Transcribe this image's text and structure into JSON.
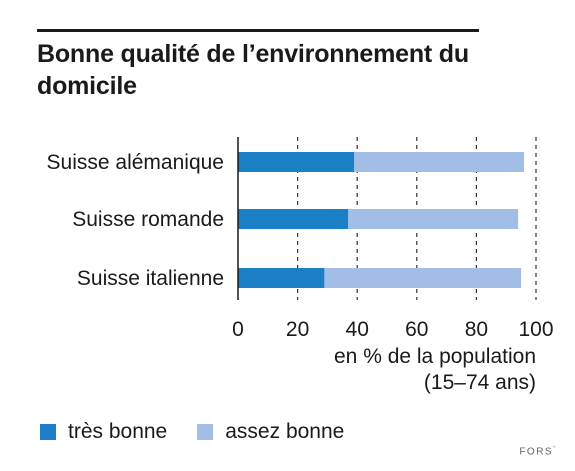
{
  "title": "Bonne qualité de l’environnement du domicile",
  "legend": {
    "items": [
      {
        "label": "très bonne",
        "color": "#1a7fc4"
      },
      {
        "label": "assez bonne",
        "color": "#a2bde6"
      }
    ]
  },
  "footer": {
    "brand": "FORS",
    "mark": "°"
  },
  "chart_data": {
    "type": "bar",
    "orientation": "horizontal",
    "stacked": true,
    "categories": [
      "Suisse alémanique",
      "Suisse romande",
      "Suisse italienne"
    ],
    "series": [
      {
        "name": "très bonne",
        "values": [
          39,
          37,
          29
        ],
        "color": "#1a7fc4"
      },
      {
        "name": "assez bonne",
        "values": [
          57,
          57,
          66
        ],
        "color": "#a2bde6"
      }
    ],
    "xlim": [
      0,
      100
    ],
    "ticks": [
      0,
      20,
      40,
      60,
      80,
      100
    ],
    "xlabel_lines": [
      "en % de la population",
      "(15–74 ans)"
    ],
    "grid": "dashed vertical",
    "legend_position": "bottom"
  }
}
